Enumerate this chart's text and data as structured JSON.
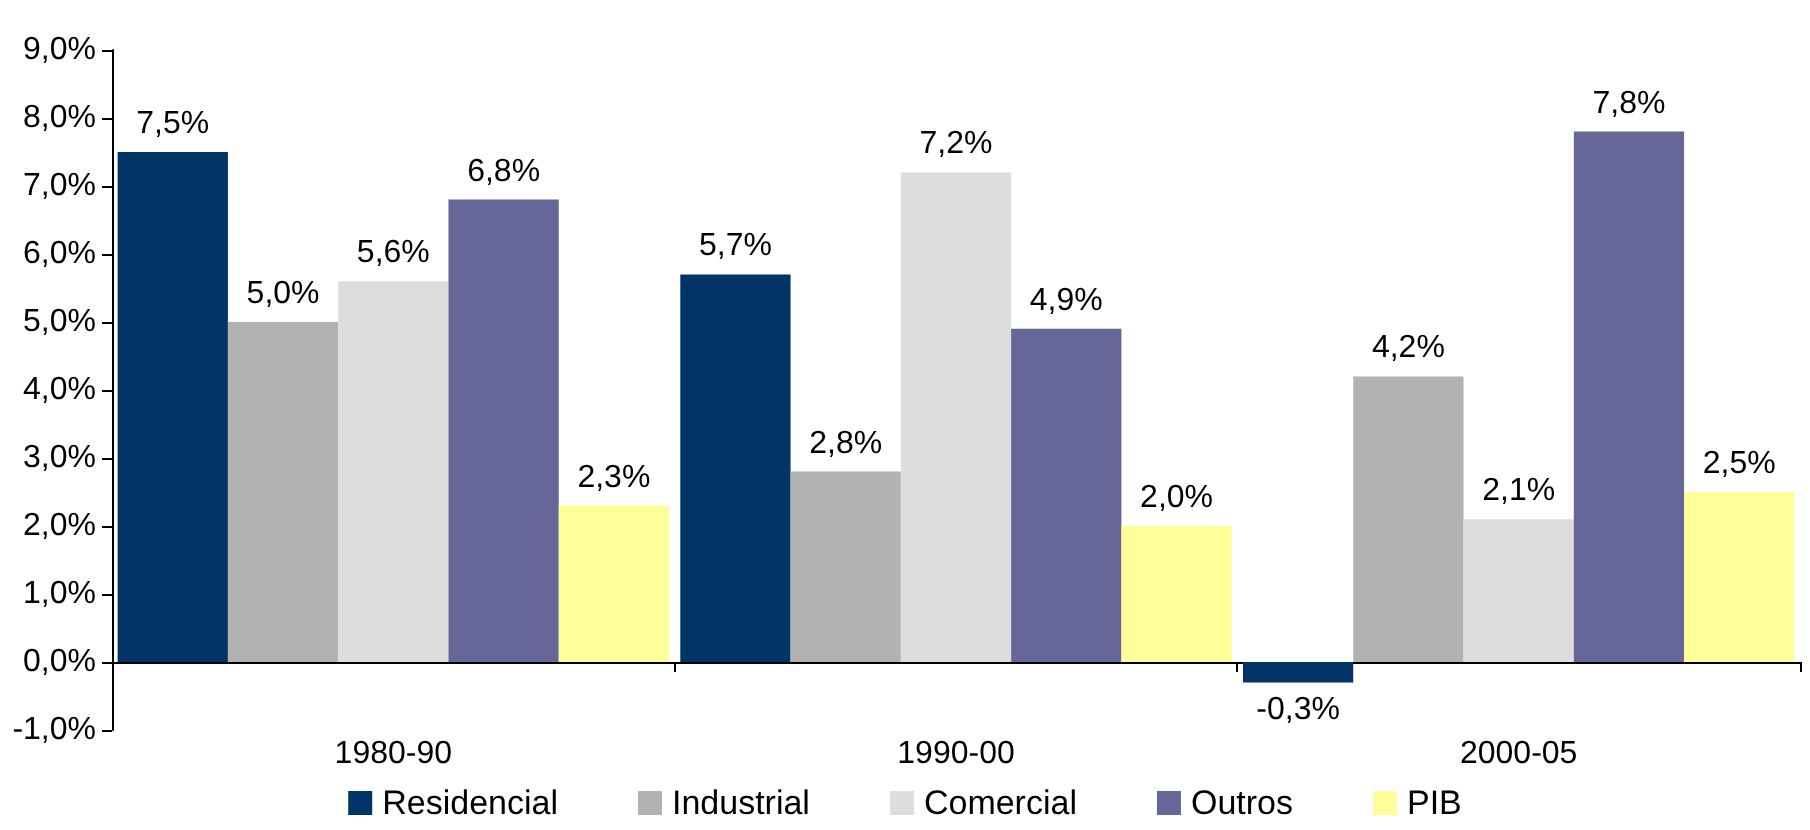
{
  "chart_data": {
    "type": "bar",
    "categories": [
      "1980-90",
      "1990-00",
      "2000-05"
    ],
    "series": [
      {
        "name": "Residencial",
        "color": "#003366",
        "values": [
          7.5,
          5.7,
          -0.3
        ],
        "value_labels": [
          "7,5%",
          "5,7%",
          "-0,3%"
        ]
      },
      {
        "name": "Industrial",
        "color": "#b2b2b2",
        "values": [
          5.0,
          2.8,
          4.2
        ],
        "value_labels": [
          "5,0%",
          "2,8%",
          "4,2%"
        ]
      },
      {
        "name": "Comercial",
        "color": "#dddddd",
        "values": [
          5.6,
          7.2,
          2.1
        ],
        "value_labels": [
          "5,6%",
          "7,2%",
          "2,1%"
        ]
      },
      {
        "name": "Outros",
        "color": "#666699",
        "values": [
          6.8,
          4.9,
          7.8
        ],
        "value_labels": [
          "6,8%",
          "4,9%",
          "7,8%"
        ]
      },
      {
        "name": "PIB",
        "color": "#ffff99",
        "values": [
          2.3,
          2.0,
          2.5
        ],
        "value_labels": [
          "2,3%",
          "2,0%",
          "2,5%"
        ]
      }
    ],
    "ylim": [
      -1,
      9
    ],
    "yticks": [
      {
        "value": -1,
        "label": "-1,0%"
      },
      {
        "value": 0,
        "label": "0,0%"
      },
      {
        "value": 1,
        "label": "1,0%"
      },
      {
        "value": 2,
        "label": "2,0%"
      },
      {
        "value": 3,
        "label": "3,0%"
      },
      {
        "value": 4,
        "label": "4,0%"
      },
      {
        "value": 5,
        "label": "5,0%"
      },
      {
        "value": 6,
        "label": "6,0%"
      },
      {
        "value": 7,
        "label": "7,0%"
      },
      {
        "value": 8,
        "label": "8,0%"
      },
      {
        "value": 9,
        "label": "9,0%"
      }
    ],
    "grid": false,
    "legend": "bottom"
  }
}
